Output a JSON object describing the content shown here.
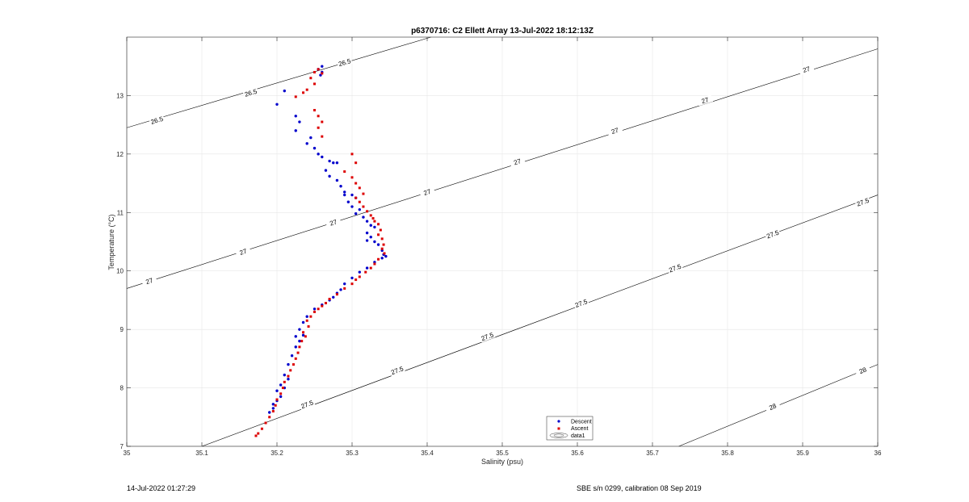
{
  "chart_data": {
    "type": "scatter",
    "title": "p6370716: C2 Ellett Array 13-Jul-2022 18:12:13Z",
    "xlabel": "Salinity (psu)",
    "ylabel": "Temperature (°C)",
    "xlim": [
      35,
      36
    ],
    "ylim": [
      7,
      14
    ],
    "xticks": [
      "35",
      "35.1",
      "35.2",
      "35.3",
      "35.4",
      "35.5",
      "35.6",
      "35.7",
      "35.8",
      "35.9",
      "36"
    ],
    "yticks": [
      "7",
      "8",
      "9",
      "10",
      "11",
      "12",
      "13"
    ],
    "grid": true,
    "legend_position": "bottom-center",
    "legend": [
      "Descent",
      "Ascent",
      "data1"
    ],
    "series": [
      {
        "name": "Descent",
        "color": "#0000cc",
        "points": [
          [
            35.26,
            13.5
          ],
          [
            35.255,
            13.45
          ],
          [
            35.26,
            13.4
          ],
          [
            35.258,
            13.35
          ],
          [
            35.21,
            13.08
          ],
          [
            35.2,
            12.85
          ],
          [
            35.225,
            12.65
          ],
          [
            35.23,
            12.55
          ],
          [
            35.225,
            12.4
          ],
          [
            35.245,
            12.28
          ],
          [
            35.24,
            12.18
          ],
          [
            35.25,
            12.1
          ],
          [
            35.255,
            12.0
          ],
          [
            35.26,
            11.95
          ],
          [
            35.27,
            11.88
          ],
          [
            35.275,
            11.85
          ],
          [
            35.28,
            11.85
          ],
          [
            35.265,
            11.72
          ],
          [
            35.27,
            11.62
          ],
          [
            35.28,
            11.55
          ],
          [
            35.285,
            11.45
          ],
          [
            35.29,
            11.35
          ],
          [
            35.29,
            11.3
          ],
          [
            35.3,
            11.3
          ],
          [
            35.305,
            11.25
          ],
          [
            35.295,
            11.18
          ],
          [
            35.3,
            11.1
          ],
          [
            35.31,
            11.05
          ],
          [
            35.305,
            10.98
          ],
          [
            35.315,
            10.92
          ],
          [
            35.32,
            10.85
          ],
          [
            35.325,
            10.78
          ],
          [
            35.33,
            10.75
          ],
          [
            35.32,
            10.65
          ],
          [
            35.325,
            10.58
          ],
          [
            35.32,
            10.52
          ],
          [
            35.33,
            10.5
          ],
          [
            35.335,
            10.45
          ],
          [
            35.34,
            10.35
          ],
          [
            35.342,
            10.28
          ],
          [
            35.345,
            10.25
          ],
          [
            35.34,
            10.22
          ],
          [
            35.33,
            10.15
          ],
          [
            35.32,
            10.05
          ],
          [
            35.31,
            9.98
          ],
          [
            35.3,
            9.88
          ],
          [
            35.29,
            9.78
          ],
          [
            35.285,
            9.68
          ],
          [
            35.28,
            9.62
          ],
          [
            35.275,
            9.55
          ],
          [
            35.27,
            9.5
          ],
          [
            35.26,
            9.42
          ],
          [
            35.25,
            9.35
          ],
          [
            35.24,
            9.22
          ],
          [
            35.235,
            9.12
          ],
          [
            35.23,
            9.0
          ],
          [
            35.235,
            8.9
          ],
          [
            35.225,
            8.88
          ],
          [
            35.23,
            8.8
          ],
          [
            35.225,
            8.7
          ],
          [
            35.22,
            8.55
          ],
          [
            35.215,
            8.4
          ],
          [
            35.21,
            8.22
          ],
          [
            35.215,
            8.15
          ],
          [
            35.205,
            8.05
          ],
          [
            35.21,
            8.0
          ],
          [
            35.2,
            7.95
          ],
          [
            35.205,
            7.85
          ],
          [
            35.2,
            7.78
          ],
          [
            35.195,
            7.72
          ],
          [
            35.195,
            7.65
          ],
          [
            35.19,
            7.58
          ]
        ]
      },
      {
        "name": "Ascent",
        "color": "#dd0000",
        "points": [
          [
            35.255,
            13.45
          ],
          [
            35.25,
            13.4
          ],
          [
            35.26,
            13.38
          ],
          [
            35.245,
            13.3
          ],
          [
            35.25,
            13.2
          ],
          [
            35.24,
            13.1
          ],
          [
            35.235,
            13.05
          ],
          [
            35.225,
            12.98
          ],
          [
            35.25,
            12.75
          ],
          [
            35.255,
            12.65
          ],
          [
            35.26,
            12.55
          ],
          [
            35.255,
            12.45
          ],
          [
            35.26,
            12.3
          ],
          [
            35.3,
            12.0
          ],
          [
            35.305,
            11.85
          ],
          [
            35.29,
            11.7
          ],
          [
            35.3,
            11.6
          ],
          [
            35.305,
            11.5
          ],
          [
            35.31,
            11.42
          ],
          [
            35.315,
            11.32
          ],
          [
            35.305,
            11.25
          ],
          [
            35.31,
            11.18
          ],
          [
            35.315,
            11.1
          ],
          [
            35.32,
            11.02
          ],
          [
            35.325,
            10.95
          ],
          [
            35.328,
            10.9
          ],
          [
            35.33,
            10.85
          ],
          [
            35.335,
            10.8
          ],
          [
            35.338,
            10.7
          ],
          [
            35.335,
            10.62
          ],
          [
            35.34,
            10.55
          ],
          [
            35.342,
            10.45
          ],
          [
            35.34,
            10.38
          ],
          [
            35.343,
            10.3
          ],
          [
            35.335,
            10.2
          ],
          [
            35.33,
            10.12
          ],
          [
            35.325,
            10.05
          ],
          [
            35.318,
            9.98
          ],
          [
            35.31,
            9.9
          ],
          [
            35.305,
            9.85
          ],
          [
            35.3,
            9.78
          ],
          [
            35.29,
            9.7
          ],
          [
            35.28,
            9.6
          ],
          [
            35.27,
            9.52
          ],
          [
            35.265,
            9.45
          ],
          [
            35.26,
            9.4
          ],
          [
            35.255,
            9.35
          ],
          [
            35.25,
            9.3
          ],
          [
            35.245,
            9.22
          ],
          [
            35.24,
            9.15
          ],
          [
            35.242,
            9.05
          ],
          [
            35.235,
            8.95
          ],
          [
            35.238,
            8.88
          ],
          [
            35.233,
            8.8
          ],
          [
            35.23,
            8.7
          ],
          [
            35.228,
            8.6
          ],
          [
            35.225,
            8.5
          ],
          [
            35.222,
            8.4
          ],
          [
            35.218,
            8.3
          ],
          [
            35.215,
            8.2
          ],
          [
            35.21,
            8.1
          ],
          [
            35.208,
            8.0
          ],
          [
            35.205,
            7.9
          ],
          [
            35.2,
            7.8
          ],
          [
            35.198,
            7.7
          ],
          [
            35.195,
            7.6
          ],
          [
            35.19,
            7.5
          ],
          [
            35.185,
            7.4
          ],
          [
            35.18,
            7.3
          ],
          [
            35.175,
            7.22
          ],
          [
            35.172,
            7.18
          ]
        ]
      }
    ],
    "contours": [
      {
        "level": "26.5",
        "from": [
          35,
          12.45
        ],
        "to": [
          35.405,
          14.0
        ],
        "labels": [
          [
            35.04,
            12.58
          ],
          [
            35.165,
            13.05
          ],
          [
            35.29,
            13.57
          ]
        ]
      },
      {
        "level": "27",
        "from": [
          35,
          9.7
        ],
        "to": [
          36,
          13.8
        ],
        "labels": [
          [
            35.03,
            9.83
          ],
          [
            35.155,
            10.33
          ],
          [
            35.275,
            10.83
          ],
          [
            35.4,
            11.35
          ],
          [
            35.52,
            11.87
          ],
          [
            35.65,
            12.4
          ],
          [
            35.77,
            12.92
          ],
          [
            35.905,
            13.45
          ]
        ]
      },
      {
        "level": "27.5",
        "from": [
          35.1,
          7.0
        ],
        "to": [
          36,
          11.3
        ],
        "labels": [
          [
            35.24,
            7.72
          ],
          [
            35.36,
            8.3
          ],
          [
            35.48,
            8.88
          ],
          [
            35.605,
            9.45
          ],
          [
            35.73,
            10.05
          ],
          [
            35.86,
            10.63
          ],
          [
            35.98,
            11.18
          ]
        ]
      },
      {
        "level": "28",
        "from": [
          35.735,
          7.0
        ],
        "to": [
          36,
          8.4
        ],
        "labels": [
          [
            35.86,
            7.68
          ],
          [
            35.98,
            8.3
          ]
        ]
      }
    ]
  },
  "footer": {
    "timestamp": "14-Jul-2022 01:27:29",
    "calibration": "SBE s/n 0299, calibration 08 Sep 2019"
  }
}
